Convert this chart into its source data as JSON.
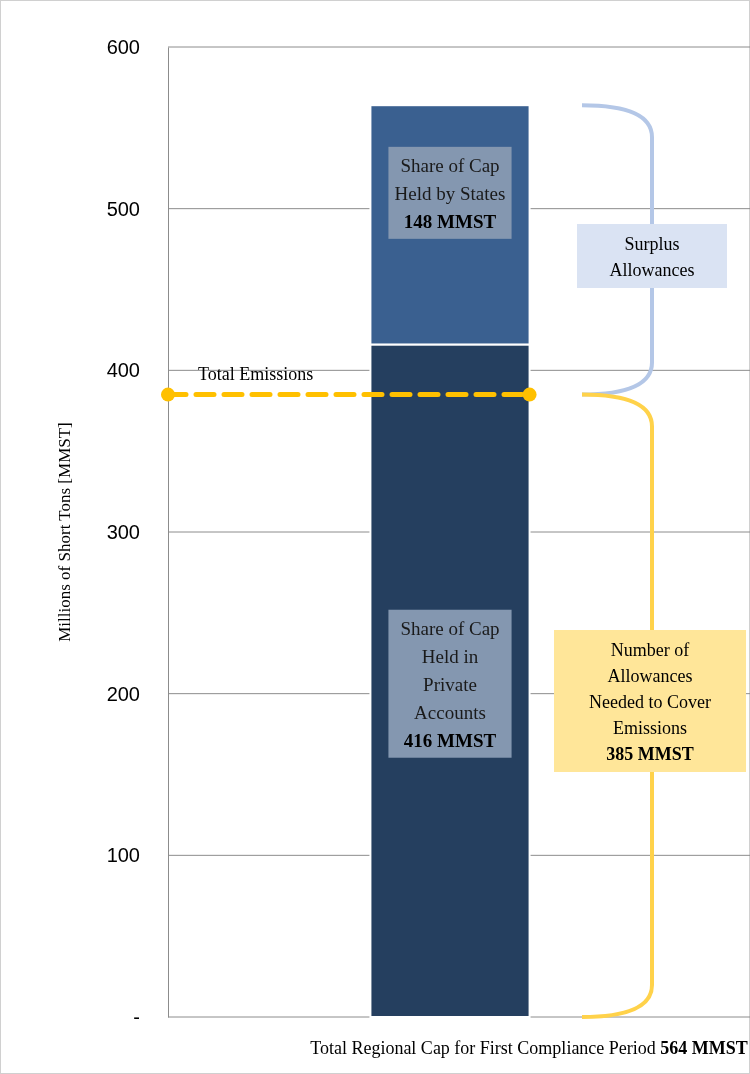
{
  "chart_data": {
    "type": "bar",
    "stacked": true,
    "categories": [
      null
    ],
    "series": [
      {
        "color": "#253f5f",
        "values": [
          416
        ],
        "value_labels": [
          "Share of Cap\nHeld in\nPrivate\nAccounts\n416 MMST"
        ]
      },
      {
        "color": "#3a6090",
        "values": [
          148
        ],
        "value_labels": [
          "Share of Cap\nHeld by States\n148 MMST"
        ]
      }
    ],
    "ylabel": "Millions of Short Tons [MMST]",
    "xlabel": "Total Regional Cap for First Compliance Period\n564 MMST",
    "ylim": [
      0,
      600
    ],
    "yticks": [
      {
        "value": 0,
        "label": "-"
      },
      100,
      200,
      300,
      400,
      500,
      600
    ],
    "grid": "y",
    "ref_lines": [
      {
        "axis": "y",
        "value": 385,
        "label": "Total Emissions",
        "color": "#ffc000",
        "line_style": "dashed"
      }
    ],
    "annotations": [
      "Surplus\nAllowances",
      "Number of\nAllowances\nNeeded to Cover\nEmissions\n385 MMST"
    ]
  }
}
